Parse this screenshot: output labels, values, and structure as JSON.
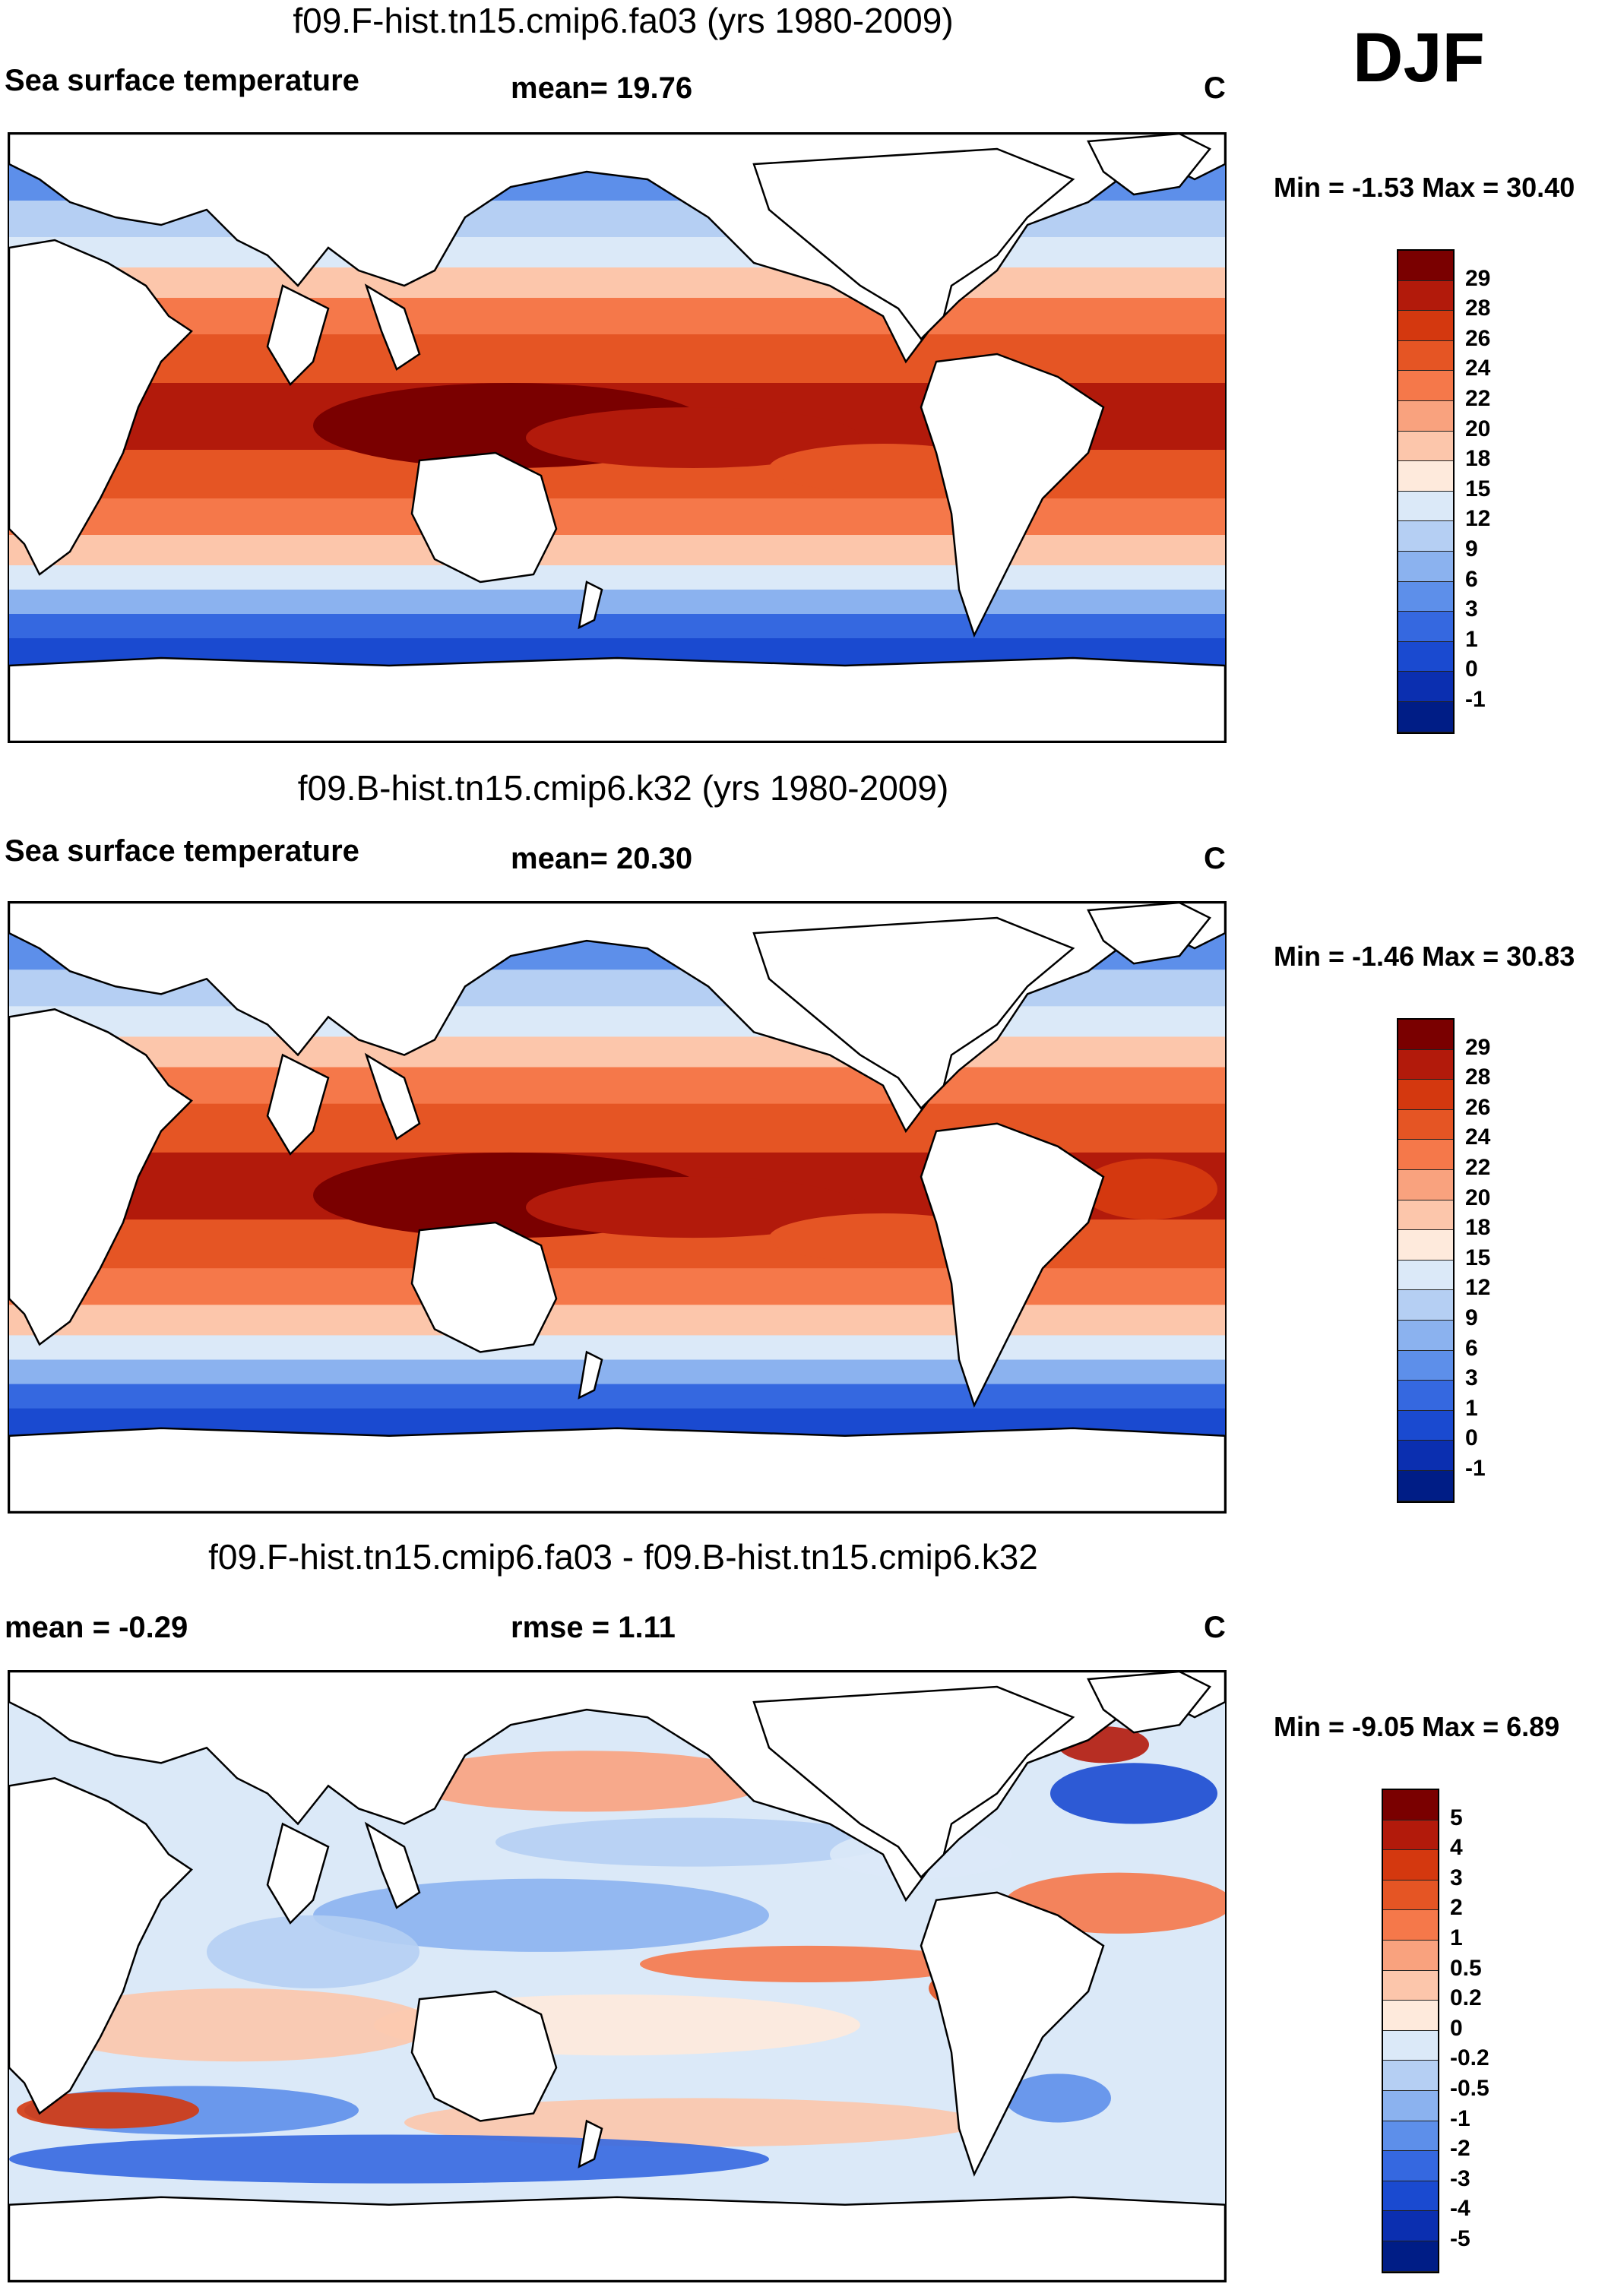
{
  "season": "DJF",
  "panels": [
    {
      "title": "f09.F-hist.tn15.cmip6.fa03 (yrs 1980-2009)",
      "left_label": "Sea surface temperature",
      "center_label": "mean=  19.76",
      "units": "C",
      "minmax": "Min =  -1.53 Max =  30.40",
      "map_type": "sst",
      "colorbar": {
        "colors": [
          "#7a0000",
          "#b21a0b",
          "#d4380f",
          "#e55524",
          "#f5784a",
          "#f9a27e",
          "#fcc6ab",
          "#feeadc",
          "#dbe9f8",
          "#b5cff3",
          "#8bb2ef",
          "#5d8fea",
          "#3568e0",
          "#1a4ad0",
          "#0b2fb0",
          "#001d86"
        ],
        "labels": [
          "29",
          "28",
          "26",
          "24",
          "22",
          "20",
          "18",
          "15",
          "12",
          "9",
          "6",
          "3",
          "1",
          "0",
          "-1"
        ]
      }
    },
    {
      "title": "f09.B-hist.tn15.cmip6.k32 (yrs 1980-2009)",
      "left_label": "Sea surface temperature",
      "center_label": "mean=  20.30",
      "units": "C",
      "minmax": "Min =  -1.46 Max =  30.83",
      "map_type": "sst",
      "colorbar": {
        "colors": [
          "#7a0000",
          "#b21a0b",
          "#d4380f",
          "#e55524",
          "#f5784a",
          "#f9a27e",
          "#fcc6ab",
          "#feeadc",
          "#dbe9f8",
          "#b5cff3",
          "#8bb2ef",
          "#5d8fea",
          "#3568e0",
          "#1a4ad0",
          "#0b2fb0",
          "#001d86"
        ],
        "labels": [
          "29",
          "28",
          "26",
          "24",
          "22",
          "20",
          "18",
          "15",
          "12",
          "9",
          "6",
          "3",
          "1",
          "0",
          "-1"
        ]
      }
    },
    {
      "title": "f09.F-hist.tn15.cmip6.fa03 - f09.B-hist.tn15.cmip6.k32",
      "left_label": "mean =  -0.29",
      "center_label": "rmse =   1.11",
      "units": "C",
      "minmax": "Min =  -9.05 Max =   6.89",
      "map_type": "diff",
      "colorbar": {
        "colors": [
          "#7a0000",
          "#b21a0b",
          "#d4380f",
          "#e55524",
          "#f5784a",
          "#f9a27e",
          "#fcc6ab",
          "#feeadc",
          "#dbe9f8",
          "#b5cff3",
          "#8bb2ef",
          "#5d8fea",
          "#3568e0",
          "#1a4ad0",
          "#0b2fb0",
          "#001d86"
        ],
        "labels": [
          "5",
          "4",
          "3",
          "2",
          "1",
          "0.5",
          "0.2",
          "0",
          "-0.2",
          "-0.5",
          "-1",
          "-2",
          "-3",
          "-4",
          "-5"
        ]
      }
    }
  ],
  "map_colors": {
    "land": "#ffffff",
    "coast": "#000000"
  }
}
